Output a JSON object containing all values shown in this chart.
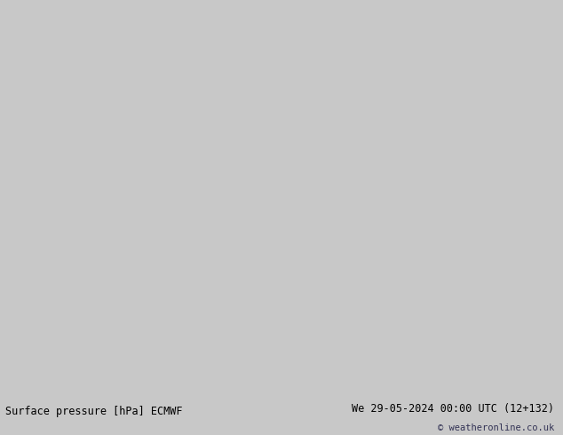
{
  "title": "",
  "bottom_left_text": "Surface pressure [hPa] ECMWF",
  "bottom_right_text": "We 29-05-2024 00:00 UTC (12+132)",
  "copyright_text": "© weatheronline.co.uk",
  "bg_color_land": "#c8f0a0",
  "bg_color_sea": "#d4e4ee",
  "bg_color_bottom_bar": "#c8c8c8",
  "isobar_color_blue": "#0000cc",
  "isobar_color_black": "#000000",
  "isobar_color_red": "#cc0000",
  "coast_color": "#a8a890",
  "figsize": [
    6.34,
    4.9
  ],
  "dpi": 100,
  "extent": [
    100,
    160,
    20,
    55
  ],
  "pressure_base": 1005.0,
  "label_fontsize": 7
}
